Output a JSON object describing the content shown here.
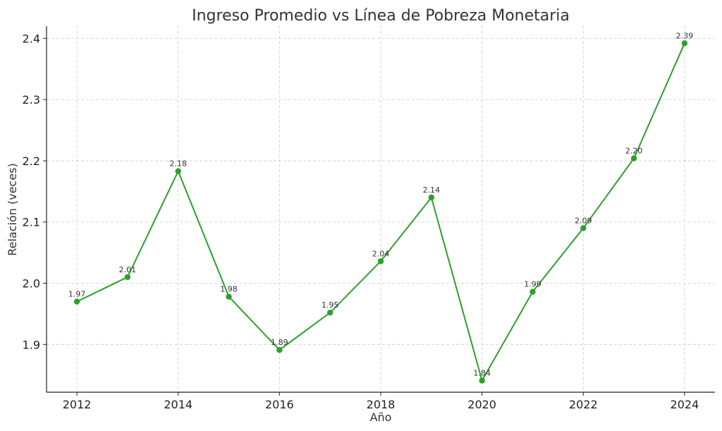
{
  "chart_data": {
    "type": "line",
    "title": "Ingreso Promedio vs Línea de Pobreza Monetaria",
    "xlabel": "Año",
    "ylabel": "Relación (veces)",
    "x": [
      2012,
      2013,
      2014,
      2015,
      2016,
      2017,
      2018,
      2019,
      2020,
      2021,
      2022,
      2023,
      2024
    ],
    "y": [
      1.97,
      2.01,
      2.183,
      1.978,
      1.891,
      1.952,
      2.036,
      2.14,
      1.841,
      1.986,
      2.09,
      2.204,
      2.392
    ],
    "point_labels": [
      "1.97",
      "2.01",
      "2.18",
      "1.98",
      "1.89",
      "1.95",
      "2.04",
      "2.14",
      "1.84",
      "1.99",
      "2.09",
      "2.20",
      "2.39"
    ],
    "x_ticks": [
      "2012",
      "2014",
      "2016",
      "2018",
      "2020",
      "2022",
      "2024"
    ],
    "x_tick_values": [
      2012,
      2014,
      2016,
      2018,
      2020,
      2022,
      2024
    ],
    "y_ticks": [
      "1.9",
      "2.0",
      "2.1",
      "2.2",
      "2.3",
      "2.4"
    ],
    "y_tick_values": [
      1.9,
      2.0,
      2.1,
      2.2,
      2.3,
      2.4
    ],
    "xlim": [
      2011.4,
      2024.6
    ],
    "ylim": [
      1.822,
      2.42
    ],
    "grid": true,
    "color": "#2ca02c"
  }
}
